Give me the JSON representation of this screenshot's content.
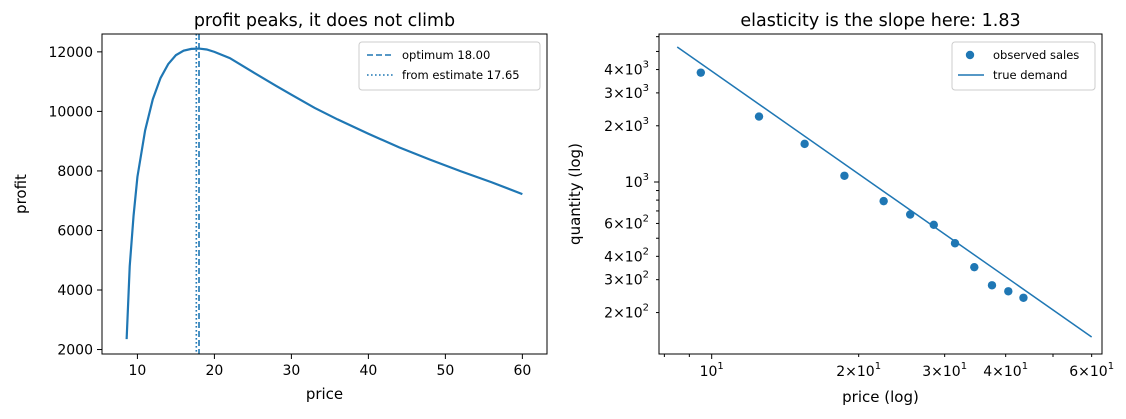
{
  "colors": {
    "line": "#1f77b4",
    "point": "#1f77b4",
    "axes": "#000000"
  },
  "chart_data": [
    {
      "type": "line",
      "title": "profit peaks, it does not climb",
      "xlabel": "price",
      "ylabel": "profit",
      "xlim": [
        5.4,
        63.2
      ],
      "ylim": [
        1850,
        12600
      ],
      "xticks": [
        10,
        20,
        30,
        40,
        50,
        60
      ],
      "yticks": [
        2000,
        4000,
        6000,
        8000,
        10000,
        12000
      ],
      "x": [
        8.6,
        9,
        9.5,
        10,
        11,
        12,
        13,
        14,
        15,
        16,
        17,
        18,
        19,
        20,
        22,
        25,
        28,
        30,
        33,
        36,
        40,
        44,
        48,
        52,
        56,
        60
      ],
      "y": [
        2350,
        4800,
        6500,
        7800,
        9360,
        10410,
        11120,
        11590,
        11890,
        12040,
        12100,
        12110,
        12080,
        12000,
        11790,
        11320,
        10860,
        10560,
        10120,
        9730,
        9250,
        8790,
        8380,
        7990,
        7620,
        7220
      ],
      "vlines": [
        {
          "label": "optimum 18.00",
          "x": 18.0,
          "style": "dashed"
        },
        {
          "label": "from estimate 17.65",
          "x": 17.65,
          "style": "dotted"
        }
      ],
      "legend": "top-right",
      "grid": false
    },
    {
      "type": "scatter",
      "title": "elasticity is the slope here: 1.83",
      "xlabel": "price (log)",
      "ylabel": "quantity (log)",
      "xscale": "log",
      "yscale": "log",
      "xlim": [
        7.8,
        63
      ],
      "ylim": [
        120,
        6200
      ],
      "xtick_labels": [
        {
          "value": 10,
          "base": "10",
          "exp": "1"
        },
        {
          "value": 20,
          "base": "2×10",
          "exp": "1"
        },
        {
          "value": 30,
          "base": "3×10",
          "exp": "1"
        },
        {
          "value": 40,
          "base": "4×10",
          "exp": "1"
        },
        {
          "value": 60,
          "base": "6×10",
          "exp": "1"
        }
      ],
      "ytick_labels": [
        {
          "value": 200,
          "base": "2×10",
          "exp": "2"
        },
        {
          "value": 300,
          "base": "3×10",
          "exp": "2"
        },
        {
          "value": 400,
          "base": "4×10",
          "exp": "2"
        },
        {
          "value": 600,
          "base": "6×10",
          "exp": "2"
        },
        {
          "value": 1000,
          "base": "10",
          "exp": "3"
        },
        {
          "value": 2000,
          "base": "2×10",
          "exp": "3"
        },
        {
          "value": 3000,
          "base": "3×10",
          "exp": "3"
        },
        {
          "value": 4000,
          "base": "4×10",
          "exp": "3"
        }
      ],
      "series": [
        {
          "name": "observed sales",
          "kind": "scatter",
          "x": [
            9.5,
            12.5,
            15.5,
            18.7,
            22.5,
            25.5,
            28.5,
            31.5,
            34.5,
            37.5,
            40.5,
            43.5
          ],
          "y": [
            3850,
            2240,
            1600,
            1080,
            790,
            670,
            590,
            470,
            350,
            280,
            260,
            240
          ]
        },
        {
          "name": "true demand",
          "kind": "line",
          "x": [
            8.5,
            60
          ],
          "y": [
            5280,
            148
          ]
        }
      ],
      "legend": "top-right",
      "grid": false
    }
  ]
}
